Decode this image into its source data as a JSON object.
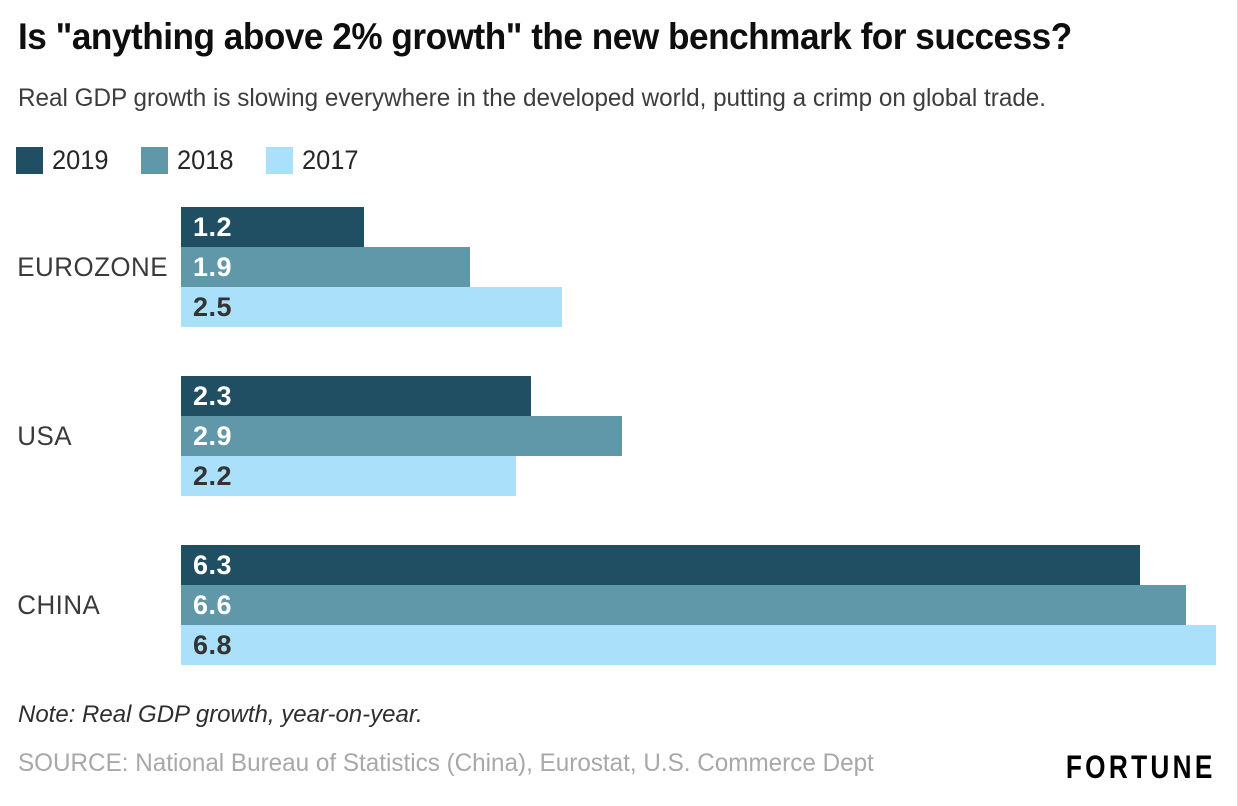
{
  "header": {
    "title": "Is \"anything above 2% growth\" the new benchmark for success?",
    "subtitle": "Real GDP growth is slowing everywhere in the developed world, putting a crimp on global trade."
  },
  "legend": [
    {
      "label": "2019",
      "color": "#204e63"
    },
    {
      "label": "2018",
      "color": "#6098a9"
    },
    {
      "label": "2017",
      "color": "#aae0fa"
    }
  ],
  "chart_data": {
    "type": "bar",
    "orientation": "horizontal",
    "title": "Is \"anything above 2% growth\" the new benchmark for success?",
    "subtitle": "Real GDP growth is slowing everywhere in the developed world, putting a crimp on global trade.",
    "categories": [
      "EUROZONE",
      "USA",
      "CHINA"
    ],
    "series": [
      {
        "name": "2019",
        "color": "#204e63",
        "label_color": "#ffffff",
        "values": [
          1.2,
          2.3,
          6.3
        ]
      },
      {
        "name": "2018",
        "color": "#6098a9",
        "label_color": "#ffffff",
        "values": [
          1.9,
          2.9,
          6.6
        ]
      },
      {
        "name": "2017",
        "color": "#aae0fa",
        "label_color": "#333333",
        "values": [
          2.5,
          2.2,
          6.8
        ]
      }
    ],
    "xlim": [
      0,
      6.8
    ],
    "value_labels": "inside-left, one decimal",
    "legend_position": "top-left",
    "grid": false,
    "axes_shown": false,
    "units": "percent real GDP growth, year-on-year"
  },
  "footer": {
    "note": "Note: Real GDP growth, year-on-year.",
    "source": "SOURCE: National Bureau of Statistics (China), Eurostat, U.S. Commerce Dept",
    "brand": "FORTUNE"
  }
}
